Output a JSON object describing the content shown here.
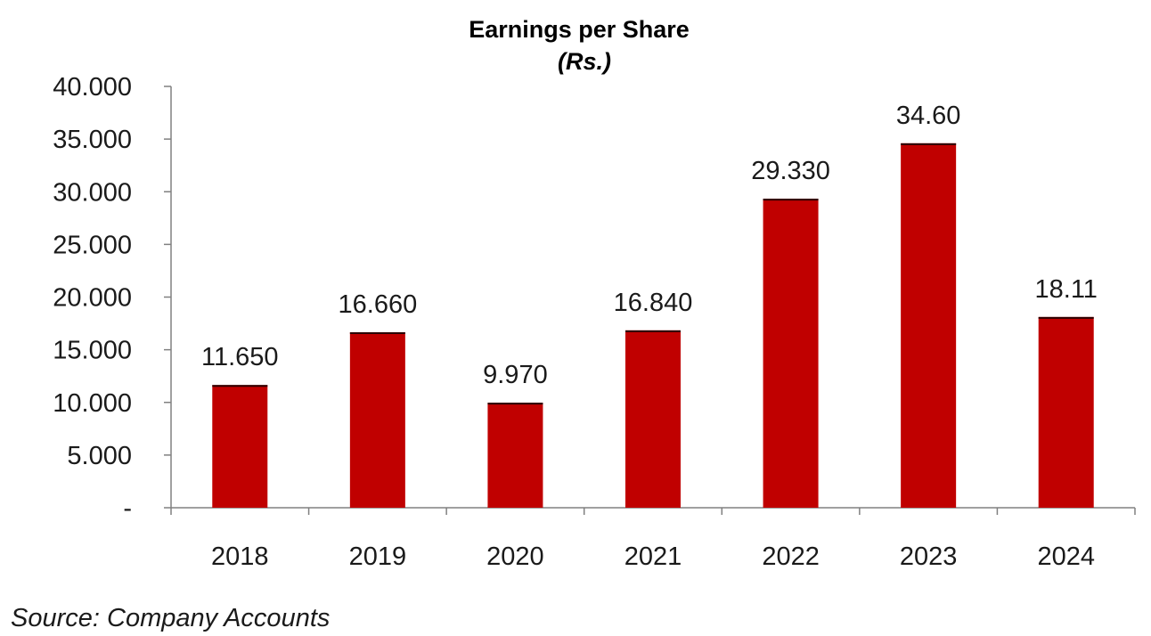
{
  "chart_data": {
    "type": "bar",
    "title": "Earnings per Share",
    "subtitle": "(Rs.)",
    "categories": [
      "2018",
      "2019",
      "2020",
      "2021",
      "2022",
      "2023",
      "2024"
    ],
    "values": [
      11.65,
      16.66,
      9.97,
      16.84,
      29.33,
      34.6,
      18.11
    ],
    "data_labels": [
      "11.650",
      "16.660",
      "9.970",
      "16.840",
      "29.330",
      "34.60",
      "18.11"
    ],
    "y_tick_labels": [
      "-",
      "5.000",
      "10.000",
      "15.000",
      "20.000",
      "25.000",
      "30.000",
      "35.000",
      "40.000"
    ],
    "ylim": [
      0,
      40
    ],
    "y_step": 5,
    "xlabel": "",
    "ylabel": "",
    "grid": false,
    "legend": "none",
    "colors": {
      "bar": "#c00000",
      "bar_top": "#2a0000",
      "axis": "#808080"
    }
  },
  "source": "Source: Company Accounts"
}
